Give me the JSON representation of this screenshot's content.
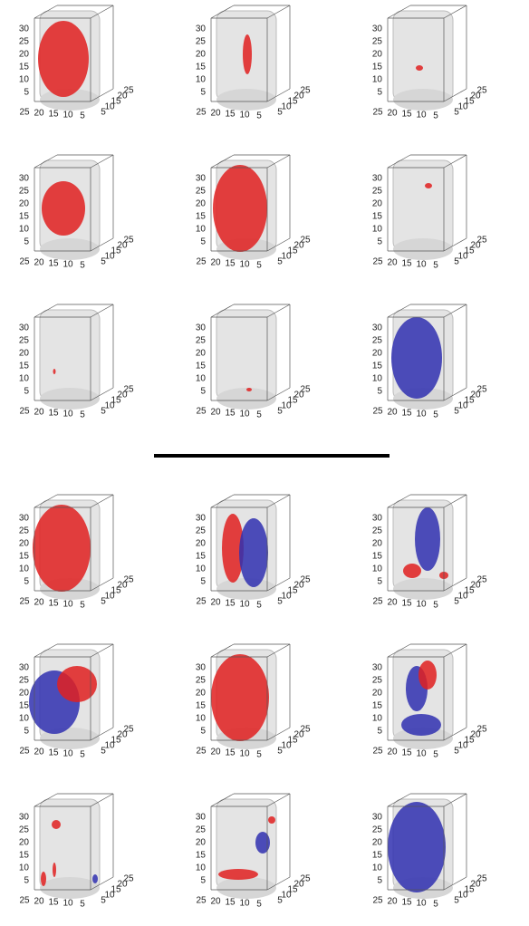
{
  "axes": {
    "z_ticks": [
      5,
      10,
      15,
      20,
      25,
      30
    ],
    "x_ticks": [
      25,
      20,
      15,
      10,
      5
    ],
    "y_ticks": [
      5,
      10,
      15,
      20,
      25
    ]
  }
}
